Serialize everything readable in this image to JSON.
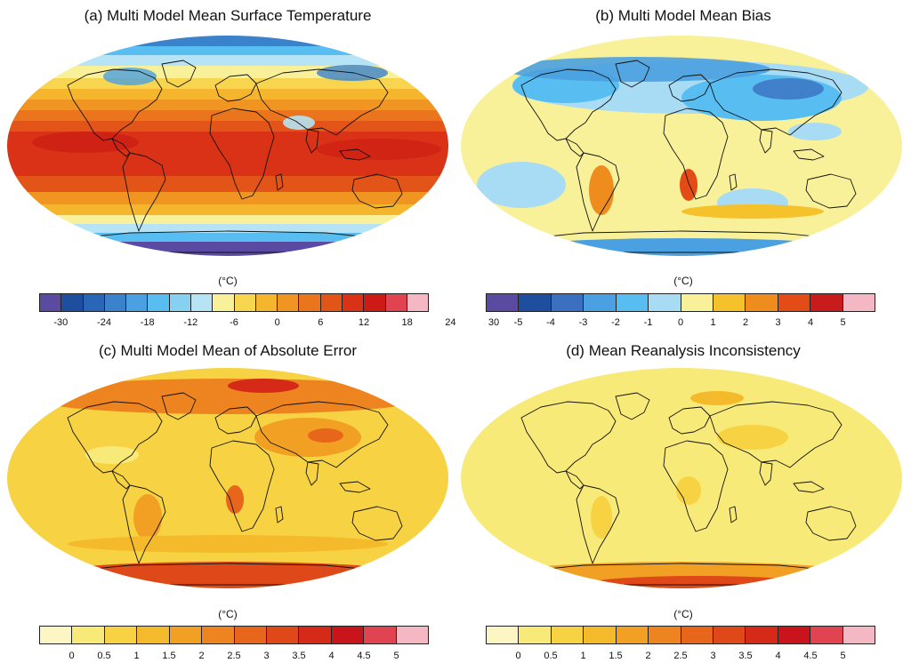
{
  "panels": [
    {
      "id": "a",
      "title": "(a) Multi Model Mean Surface Temperature",
      "unit": "(°C)",
      "colorbar": {
        "colors": [
          "#5b4aa2",
          "#1e4e9e",
          "#2a66b8",
          "#3b82cc",
          "#4aa0e0",
          "#58bdf0",
          "#86d0f2",
          "#b6e3f5",
          "#f8f19a",
          "#f8d54e",
          "#f5b52c",
          "#f09522",
          "#ea751c",
          "#e35418",
          "#d93216",
          "#cc1a16",
          "#e04450",
          "#f4b8c4"
        ],
        "tick_labels": [
          "-30",
          "-24",
          "-18",
          "-12",
          "-6",
          "0",
          "6",
          "12",
          "18",
          "24",
          "30"
        ],
        "tick_edges": [
          1,
          3,
          5,
          7,
          9,
          11,
          13,
          15,
          17
        ]
      },
      "map_style": "temperature"
    },
    {
      "id": "b",
      "title": "(b) Multi Model Mean Bias",
      "unit": "(°C)",
      "colorbar": {
        "colors": [
          "#5b4aa2",
          "#1e4e9e",
          "#3b70c0",
          "#4aa0e0",
          "#58bdf0",
          "#a8dcf4",
          "#f8f19a",
          "#f5c22c",
          "#ee8c1e",
          "#e34c16",
          "#c81c1c",
          "#f4b8c4"
        ],
        "tick_labels": [
          "-5",
          "-4",
          "-3",
          "-2",
          "-1",
          "0",
          "1",
          "2",
          "3",
          "4",
          "5"
        ],
        "tick_edges": [
          1,
          2,
          3,
          4,
          5,
          6,
          7,
          8,
          9,
          10,
          11
        ]
      },
      "map_style": "bias"
    },
    {
      "id": "c",
      "title": "(c) Multi Model Mean of Absolute Error",
      "unit": "(°C)",
      "colorbar": {
        "colors": [
          "#fbf6c4",
          "#f8ea78",
          "#f7d343",
          "#f5ba2c",
          "#f2a023",
          "#ed841f",
          "#e7661b",
          "#df4818",
          "#d42a17",
          "#c8141a",
          "#e04450",
          "#f4b8c4"
        ],
        "tick_labels": [
          "0",
          "0.5",
          "1",
          "1.5",
          "2",
          "2.5",
          "3",
          "3.5",
          "4",
          "4.5",
          "5"
        ],
        "tick_edges": [
          1,
          2,
          3,
          4,
          5,
          6,
          7,
          8,
          9,
          10,
          11
        ]
      },
      "map_style": "abserr"
    },
    {
      "id": "d",
      "title": "(d) Mean Reanalysis Inconsistency",
      "unit": "(°C)",
      "colorbar": {
        "colors": [
          "#fbf6c4",
          "#f8ea78",
          "#f7d343",
          "#f5ba2c",
          "#f2a023",
          "#ed841f",
          "#e7661b",
          "#df4818",
          "#d42a17",
          "#c8141a",
          "#e04450",
          "#f4b8c4"
        ],
        "tick_labels": [
          "0",
          "0.5",
          "1",
          "1.5",
          "2",
          "2.5",
          "3",
          "3.5",
          "4",
          "4.5",
          "5"
        ],
        "tick_edges": [
          1,
          2,
          3,
          4,
          5,
          6,
          7,
          8,
          9,
          10,
          11
        ]
      },
      "map_style": "reanalysis"
    }
  ]
}
